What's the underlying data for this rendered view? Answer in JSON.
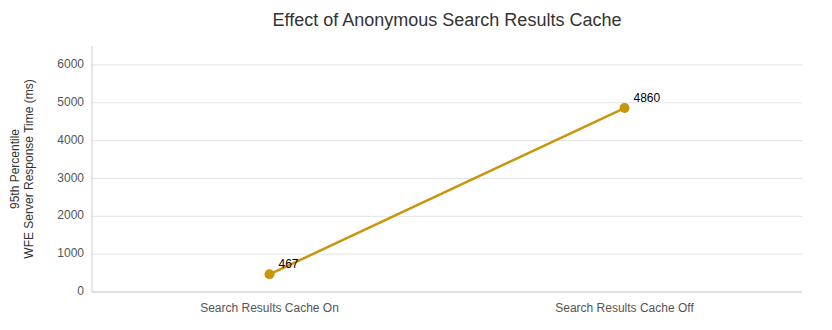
{
  "chart_data": {
    "type": "line",
    "title": "Effect of Anonymous Search Results Cache",
    "ylabel": [
      "95th Percentile",
      "WFE Server Response Time (ms)"
    ],
    "categories": [
      "Search Results Cache On",
      "Search Results Cache Off"
    ],
    "values": [
      467,
      4860
    ],
    "color": "#C8960C",
    "marker": "circle",
    "ylim": [
      0,
      6500
    ],
    "yticks": [
      0,
      1000,
      2000,
      3000,
      4000,
      5000,
      6000
    ],
    "grid": true,
    "data_labels": true
  }
}
